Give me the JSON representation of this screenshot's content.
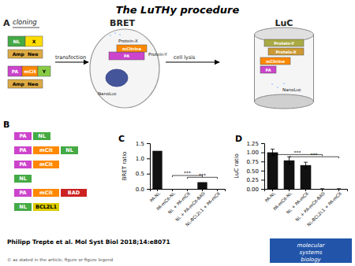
{
  "title": "The LuTHy procedure",
  "background_color": "#ffffff",
  "annotations": {
    "panel_a": [
      {
        "text": "A"
      },
      {
        "text": "cloning"
      },
      {
        "text": "NL",
        "color": "#44aa44"
      },
      {
        "text": "X",
        "color": "#ffdd00"
      },
      {
        "text": "Amp  Neo",
        "color": "#ddaa44"
      },
      {
        "text": "PA",
        "color": "#cc44cc"
      },
      {
        "text": "mCit",
        "color": "#ff8800"
      },
      {
        "text": "Y",
        "color": "#88cc44"
      },
      {
        "text": "Amp  Neo",
        "color": "#ddaa44"
      },
      {
        "text": "transfection"
      },
      {
        "text": "BRET"
      },
      {
        "text": "PA",
        "color": "#cc44cc"
      },
      {
        "text": "mCitrine",
        "color": "#ff8800"
      },
      {
        "text": "Protein-Y"
      },
      {
        "text": "Protein-X"
      },
      {
        "text": "NanoLuc"
      },
      {
        "text": "cell lysis"
      },
      {
        "text": "LuC"
      },
      {
        "text": "Protein-Y",
        "color": "#aaaa44"
      },
      {
        "text": "Protein-X",
        "color": "#cc9933"
      },
      {
        "text": "mCitrine",
        "color": "#ff8800"
      },
      {
        "text": "PA",
        "color": "#cc44cc"
      },
      {
        "text": "NanoLuc"
      }
    ],
    "panel_b": {
      "label": "B",
      "rows": [
        [
          {
            "text": "PA",
            "color": "#cc44cc"
          },
          {
            "text": "NL",
            "color": "#44aa44"
          }
        ],
        [
          {
            "text": "PA",
            "color": "#cc44cc"
          },
          {
            "text": "mCit",
            "color": "#ff8800"
          },
          {
            "text": "NL",
            "color": "#44aa44"
          }
        ],
        [
          {
            "text": "PA",
            "color": "#cc44cc"
          },
          {
            "text": "mCit",
            "color": "#ff8800"
          }
        ],
        [
          {
            "text": "NL",
            "color": "#44aa44"
          }
        ],
        [
          {
            "text": "PA",
            "color": "#cc44cc"
          },
          {
            "text": "mCit",
            "color": "#ff8800"
          },
          {
            "text": "BAD",
            "color": "#cc2222"
          }
        ],
        [
          {
            "text": "NL",
            "color": "#44aa44"
          },
          {
            "text": "BCL2L1",
            "color": "#ddcc00"
          }
        ]
      ]
    },
    "citation": "Philipp Trepte et al. Mol Syst Biol 2018;14:e8071",
    "copyright": "© as stated in the article, figure or figure legend",
    "logo": {
      "color": "#2255aa",
      "lines": [
        "molecular",
        "systems",
        "biology"
      ]
    }
  },
  "chart_data": [
    {
      "type": "bar",
      "title": "C",
      "categories": [
        "PA-NL",
        "PA-mCit-NL",
        "NL + PA-mCit",
        "NL + PA-mCit-BAD",
        "NL-BCL2L1 + PA-mCit"
      ],
      "values": [
        1.25,
        0.0,
        0.0,
        0.22,
        0.0
      ],
      "color": "#111111",
      "ylabel": "BRET ratio",
      "ylim": [
        0,
        1.5
      ],
      "yticks": [
        {
          "value": 0,
          "label": "0.0"
        },
        0.5,
        {
          "value": 1,
          "label": "1.0"
        },
        1.5
      ],
      "grid": false,
      "annotations": [
        {
          "text": "***",
          "from": "PA-mCit-NL",
          "to": "NL + PA-mCit-BAD",
          "y": 0.44
        },
        {
          "text": "***",
          "from": "NL + PA-mCit",
          "to": "NL-BCL2L1 + PA-mCit",
          "y": 0.38
        }
      ]
    },
    {
      "type": "bar",
      "title": "D",
      "categories": [
        "PA-NL",
        "PA-mCit-NL",
        "NL + PA-mCit",
        "NL + PA-mCit-BAD",
        "NL-BCL2L1 + PA-mCit"
      ],
      "values": [
        1.0,
        0.78,
        0.65,
        0.0,
        0.0
      ],
      "errors": [
        0.09,
        0.1,
        0.08,
        0.0,
        0.0
      ],
      "color": "#111111",
      "ylabel": "LuC ratio",
      "ylim": [
        0,
        1.25
      ],
      "yticks": [
        {
          "value": 0,
          "label": "0.00"
        },
        0.25,
        {
          "value": 0.5,
          "label": "0.50"
        },
        0.75,
        {
          "value": 1,
          "label": "1.00"
        },
        1.25
      ],
      "grid": false,
      "annotations": [
        {
          "text": "***",
          "from": "PA-NL",
          "to": "NL + PA-mCit-BAD",
          "y": 0.94
        },
        {
          "text": "***",
          "from": "PA-mCit-NL",
          "to": "NL-BCL2L1 + PA-mCit",
          "y": 0.88
        }
      ]
    }
  ]
}
